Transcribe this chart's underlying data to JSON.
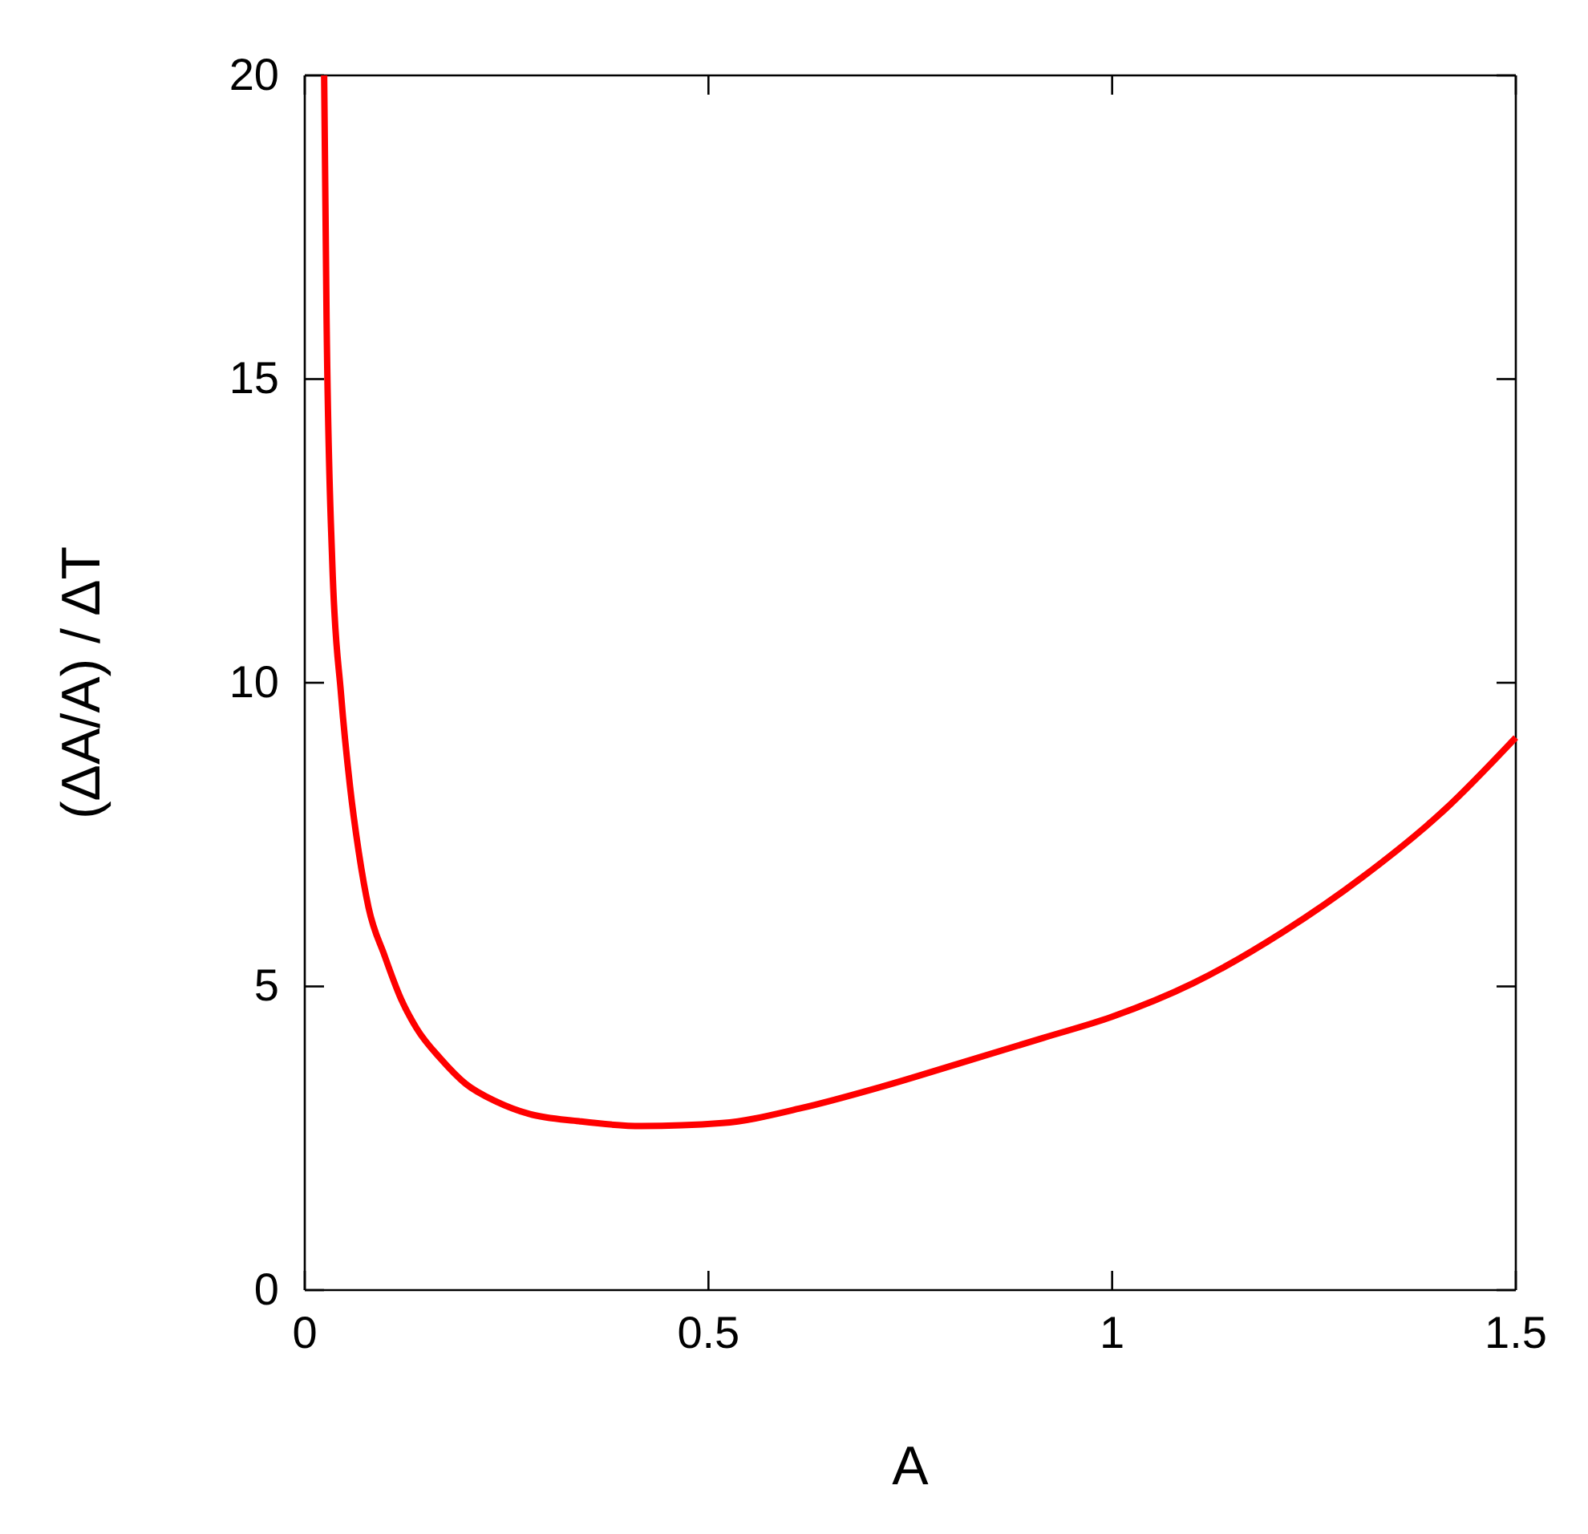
{
  "chart_data": {
    "type": "line",
    "xlabel": "A",
    "ylabel": "(ΔA/A) / ΔT",
    "xlim": [
      0,
      1.5
    ],
    "xticks": [
      0,
      0.5,
      1,
      1.5
    ],
    "ylim": [
      0,
      20
    ],
    "yticks": [
      0,
      5,
      10,
      15,
      20
    ],
    "grid": false,
    "marker": "none",
    "line_style": "solid",
    "series": [
      {
        "color": "#ff0000",
        "x": [
          0.024,
          0.027,
          0.034,
          0.045,
          0.056,
          0.067,
          0.079,
          0.099,
          0.119,
          0.139,
          0.169,
          0.199,
          0.238,
          0.278,
          0.34,
          0.417,
          0.517,
          0.616,
          0.715,
          0.815,
          0.914,
          1.0,
          1.1,
          1.212,
          1.31,
          1.411,
          1.5
        ],
        "values": [
          20,
          16,
          12,
          9.8,
          8.3,
          7.2,
          6.3,
          5.5,
          4.8,
          4.3,
          3.8,
          3.4,
          3.1,
          2.9,
          2.78,
          2.7,
          2.75,
          3.0,
          3.35,
          3.75,
          4.15,
          4.5,
          5.05,
          5.9,
          6.8,
          7.9,
          9.1
        ]
      }
    ]
  }
}
